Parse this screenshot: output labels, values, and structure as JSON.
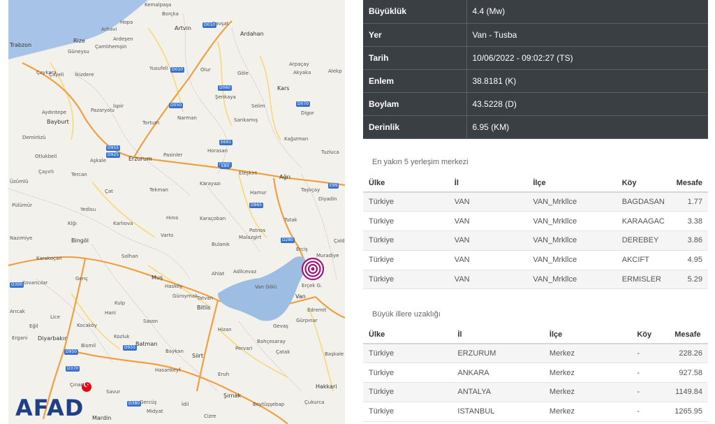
{
  "map": {
    "logo": "AFAD",
    "places": [
      {
        "name": "Kemalpaşa",
        "cls": ""
      },
      {
        "name": "Borçka",
        "cls": ""
      },
      {
        "name": "Hopa",
        "cls": ""
      },
      {
        "name": "Arhavi",
        "cls": ""
      },
      {
        "name": "Artvin",
        "cls": "big"
      },
      {
        "name": "Şavşat",
        "cls": ""
      },
      {
        "name": "Ardahan",
        "cls": "big"
      },
      {
        "name": "Rize",
        "cls": "big"
      },
      {
        "name": "Ardeşen",
        "cls": ""
      },
      {
        "name": "Trabzon",
        "cls": "big"
      },
      {
        "name": "Güneysu",
        "cls": ""
      },
      {
        "name": "Çamlıhemşin",
        "cls": ""
      },
      {
        "name": "Çayeli",
        "cls": ""
      },
      {
        "name": "Yusufeli",
        "cls": ""
      },
      {
        "name": "Olur",
        "cls": ""
      },
      {
        "name": "Göle",
        "cls": ""
      },
      {
        "name": "Arpaçay",
        "cls": ""
      },
      {
        "name": "Akyaka",
        "cls": ""
      },
      {
        "name": "Alekp",
        "cls": ""
      },
      {
        "name": "Çaykara",
        "cls": ""
      },
      {
        "name": "İkizdere",
        "cls": ""
      },
      {
        "name": "Kars",
        "cls": "big"
      },
      {
        "name": "İspir",
        "cls": ""
      },
      {
        "name": "Şenkaya",
        "cls": ""
      },
      {
        "name": "Selim",
        "cls": ""
      },
      {
        "name": "Digor",
        "cls": ""
      },
      {
        "name": "Pazaryolu",
        "cls": ""
      },
      {
        "name": "Aydıntepe",
        "cls": ""
      },
      {
        "name": "Bayburt",
        "cls": "big"
      },
      {
        "name": "Tortum",
        "cls": ""
      },
      {
        "name": "Narman",
        "cls": ""
      },
      {
        "name": "Sarıkamış",
        "cls": ""
      },
      {
        "name": "Kağızman",
        "cls": ""
      },
      {
        "name": "Demirözü",
        "cls": ""
      },
      {
        "name": "Otlukbeli",
        "cls": ""
      },
      {
        "name": "Aşkale",
        "cls": ""
      },
      {
        "name": "Erzurum",
        "cls": "big"
      },
      {
        "name": "Pasinler",
        "cls": ""
      },
      {
        "name": "Horasan",
        "cls": ""
      },
      {
        "name": "Tuzluca",
        "cls": ""
      },
      {
        "name": "Çayırlı",
        "cls": ""
      },
      {
        "name": "Tercan",
        "cls": ""
      },
      {
        "name": "Eleşkirt",
        "cls": ""
      },
      {
        "name": "Ağrı",
        "cls": "big"
      },
      {
        "name": "Taşlıçay",
        "cls": ""
      },
      {
        "name": "Üzümlü",
        "cls": ""
      },
      {
        "name": "Çat",
        "cls": ""
      },
      {
        "name": "Tekman",
        "cls": ""
      },
      {
        "name": "Karayazı",
        "cls": ""
      },
      {
        "name": "Hamur",
        "cls": ""
      },
      {
        "name": "Diyadin",
        "cls": ""
      },
      {
        "name": "Pülümür",
        "cls": ""
      },
      {
        "name": "Yedisu",
        "cls": ""
      },
      {
        "name": "Hınıs",
        "cls": ""
      },
      {
        "name": "Karaçoban",
        "cls": ""
      },
      {
        "name": "Tutak",
        "cls": ""
      },
      {
        "name": "Kiğı",
        "cls": ""
      },
      {
        "name": "Karlıova",
        "cls": ""
      },
      {
        "name": "Varto",
        "cls": ""
      },
      {
        "name": "Patnos",
        "cls": ""
      },
      {
        "name": "Nazımiye",
        "cls": ""
      },
      {
        "name": "Bulanık",
        "cls": ""
      },
      {
        "name": "Malazgirt",
        "cls": ""
      },
      {
        "name": "Erciş",
        "cls": ""
      },
      {
        "name": "Muradiye",
        "cls": ""
      },
      {
        "name": "Çaldıran",
        "cls": ""
      },
      {
        "name": "Bingöl",
        "cls": "big"
      },
      {
        "name": "Solhan",
        "cls": ""
      },
      {
        "name": "Karakoçan",
        "cls": ""
      },
      {
        "name": "Adilcevaz",
        "cls": ""
      },
      {
        "name": "Muş",
        "cls": "big"
      },
      {
        "name": "Ahlat",
        "cls": ""
      },
      {
        "name": "Genç",
        "cls": ""
      },
      {
        "name": "Kovancılar",
        "cls": ""
      },
      {
        "name": "Hasköy",
        "cls": ""
      },
      {
        "name": "Kulp",
        "cls": ""
      },
      {
        "name": "Güroymak",
        "cls": ""
      },
      {
        "name": "Tatvan",
        "cls": ""
      },
      {
        "name": "Van",
        "cls": "big"
      },
      {
        "name": "Edremit",
        "cls": ""
      },
      {
        "name": "Arıcak",
        "cls": ""
      },
      {
        "name": "Hani",
        "cls": ""
      },
      {
        "name": "Lice",
        "cls": ""
      },
      {
        "name": "Bitlis",
        "cls": "big"
      },
      {
        "name": "Gevaş",
        "cls": ""
      },
      {
        "name": "Gürpınar",
        "cls": ""
      },
      {
        "name": "Sason",
        "cls": ""
      },
      {
        "name": "Eğil",
        "cls": ""
      },
      {
        "name": "Kocaköy",
        "cls": ""
      },
      {
        "name": "Kozluk",
        "cls": ""
      },
      {
        "name": "Hizan",
        "cls": ""
      },
      {
        "name": "Ergani",
        "cls": ""
      },
      {
        "name": "Bahçesaray",
        "cls": ""
      },
      {
        "name": "Bismil",
        "cls": ""
      },
      {
        "name": "Diyarbakır",
        "cls": "big"
      },
      {
        "name": "Batman",
        "cls": "big"
      },
      {
        "name": "Baykan",
        "cls": ""
      },
      {
        "name": "Pervari",
        "cls": ""
      },
      {
        "name": "Çatak",
        "cls": ""
      },
      {
        "name": "Başkale",
        "cls": ""
      },
      {
        "name": "Siirt",
        "cls": "big"
      },
      {
        "name": "Hasankeyf",
        "cls": ""
      },
      {
        "name": "Eruh",
        "cls": ""
      },
      {
        "name": "Hakkari",
        "cls": "big"
      },
      {
        "name": "Çınar",
        "cls": ""
      },
      {
        "name": "Savur",
        "cls": ""
      },
      {
        "name": "Gercüş",
        "cls": ""
      },
      {
        "name": "Şırnak",
        "cls": "big"
      },
      {
        "name": "Mardin",
        "cls": "big"
      },
      {
        "name": "Midyat",
        "cls": ""
      },
      {
        "name": "İdil",
        "cls": ""
      },
      {
        "name": "Beytüşşebap",
        "cls": ""
      },
      {
        "name": "Çukurca",
        "cls": ""
      },
      {
        "name": "Cizre",
        "cls": ""
      },
      {
        "name": "Van Gölü",
        "cls": ""
      },
      {
        "name": "Erçek G.",
        "cls": ""
      }
    ],
    "road_tags": [
      "D010",
      "D010",
      "D060",
      "D050",
      "D070",
      "D955",
      "D925",
      "D080",
      "D965",
      "D280",
      "D300",
      "D955",
      "D950",
      "D370",
      "D380",
      "E80",
      "E99",
      "E691"
    ]
  },
  "earthquake": {
    "rows": [
      {
        "label": "Büyüklük",
        "value": "4.4 (Mw)"
      },
      {
        "label": "Yer",
        "value": "Van - Tusba"
      },
      {
        "label": "Tarih",
        "value": "10/06/2022 - 09:02:27 (TS)"
      },
      {
        "label": "Enlem",
        "value": "38.8181 (K)"
      },
      {
        "label": "Boylam",
        "value": "43.5228 (D)"
      },
      {
        "label": "Derinlik",
        "value": "6.95 (KM)"
      }
    ]
  },
  "nearest": {
    "title": "En yakın 5 yerleşim merkezi",
    "headers": [
      "Ülke",
      "İl",
      "İlçe",
      "Köy",
      "Mesafe"
    ],
    "rows": [
      [
        "Türkiye",
        "VAN",
        "VAN_Mrkllce",
        "BAGDASAN",
        "1.77"
      ],
      [
        "Türkiye",
        "VAN",
        "VAN_Mrkllce",
        "KARAAGAC",
        "3.38"
      ],
      [
        "Türkiye",
        "VAN",
        "VAN_Mrkllce",
        "DEREBEY",
        "3.86"
      ],
      [
        "Türkiye",
        "VAN",
        "VAN_Mrkllce",
        "AKCIFT",
        "4.95"
      ],
      [
        "Türkiye",
        "VAN",
        "VAN_Mrkllce",
        "ERMISLER",
        "5.29"
      ]
    ]
  },
  "cities": {
    "title": "Büyük illere uzaklığı",
    "headers": [
      "Ülke",
      "İl",
      "İlçe",
      "Köy",
      "Mesafe"
    ],
    "rows": [
      [
        "Türkiye",
        "ERZURUM",
        "Merkez",
        "-",
        "228.26"
      ],
      [
        "Türkiye",
        "ANKARA",
        "Merkez",
        "-",
        "927.58"
      ],
      [
        "Türkiye",
        "ANTALYA",
        "Merkez",
        "-",
        "1149.84"
      ],
      [
        "Türkiye",
        "ISTANBUL",
        "Merkez",
        "-",
        "1265.95"
      ]
    ]
  },
  "colors": {
    "table_header_bg": "#3a3f44",
    "lake": "#9dbde3",
    "sea": "#a7c4e8",
    "road_major": "#f0a040",
    "road_minor": "#f7d87a",
    "epicenter": "#a0157d"
  }
}
